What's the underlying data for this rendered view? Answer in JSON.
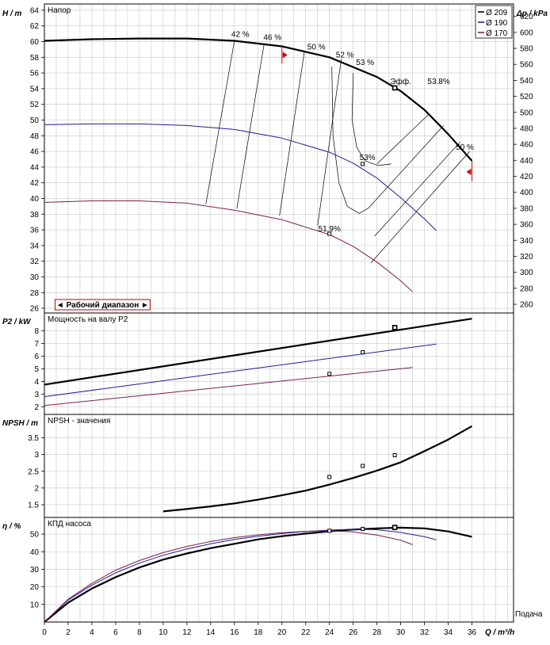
{
  "chart_data": {
    "type": "line",
    "x_axis": {
      "label": "Q / m³/h",
      "label_note": "Подача",
      "ticks": [
        0,
        2,
        4,
        6,
        8,
        10,
        12,
        14,
        16,
        18,
        20,
        22,
        24,
        26,
        28,
        30,
        32,
        34,
        36
      ],
      "range": [
        0,
        39.5
      ]
    },
    "legend": {
      "placement": "top-right",
      "items": [
        {
          "name": "Ø 209",
          "color": "#000000"
        },
        {
          "name": "Ø 190",
          "color": "#1f1f8f"
        },
        {
          "name": "Ø 170",
          "color": "#7a1f4f"
        }
      ]
    },
    "operating_range_label": "◄ Рабочий диапазон ►",
    "panels": [
      {
        "id": "head",
        "title": "Напор",
        "ylabel": "H / m",
        "ylim": [
          25.4,
          64.8
        ],
        "yticks": [
          26,
          28,
          30,
          32,
          34,
          36,
          38,
          40,
          42,
          44,
          46,
          48,
          50,
          52,
          54,
          56,
          58,
          60,
          62,
          64
        ],
        "y2label": "Δp / kPa",
        "y2lim": [
          249.1,
          635.5
        ],
        "y2ticks": [
          260,
          280,
          300,
          320,
          340,
          360,
          380,
          400,
          420,
          440,
          460,
          480,
          500,
          520,
          540,
          560,
          580,
          600,
          620
        ],
        "series": [
          {
            "name": "Ø 209",
            "width": 2.2,
            "x": [
              0,
              4,
              8,
              12,
              16,
              20,
              24,
              28,
              30,
              32,
              34,
              36
            ],
            "y": [
              60.1,
              60.3,
              60.4,
              60.4,
              60.1,
              59.4,
              58.0,
              55.5,
              53.7,
              51.3,
              48.2,
              44.8
            ]
          },
          {
            "name": "Ø 190",
            "width": 1,
            "x": [
              0,
              4,
              8,
              12,
              16,
              20,
              24,
              26,
              28,
              30,
              32,
              33
            ],
            "y": [
              49.4,
              49.5,
              49.5,
              49.3,
              48.8,
              47.7,
              45.9,
              44.5,
              42.6,
              40.1,
              37.4,
              35.9
            ]
          },
          {
            "name": "Ø 170",
            "width": 1,
            "x": [
              0,
              4,
              8,
              12,
              16,
              20,
              24,
              26,
              28,
              30,
              31
            ],
            "y": [
              39.5,
              39.7,
              39.7,
              39.4,
              38.5,
              37.3,
              35.4,
              33.9,
              31.9,
              29.5,
              28.1
            ]
          }
        ],
        "efficiency_lines": [
          {
            "x": [
              13.6,
              16.0
            ],
            "y": [
              39.3,
              60.1
            ]
          },
          {
            "x": [
              16.2,
              18.5
            ],
            "y": [
              38.7,
              59.7
            ]
          },
          {
            "x": [
              19.8,
              21.9
            ],
            "y": [
              37.8,
              58.8
            ]
          },
          {
            "x": [
              23.0,
              25.0
            ],
            "y": [
              36.5,
              57.8
            ]
          }
        ],
        "efficiency_curves": [
          {
            "x": [
              24.2,
              24.3,
              24.8,
              25.5,
              26.5,
              27.3
            ],
            "y": [
              56.8,
              48,
              42,
              39,
              38.1,
              38.8
            ]
          },
          {
            "x": [
              26.0,
              25.9,
              26.3,
              27.0,
              28.1,
              29.2
            ],
            "y": [
              56.0,
              50,
              46.5,
              44.8,
              44.2,
              44.4
            ]
          }
        ],
        "iso_lines": [
          {
            "x": [
              28.0,
              32.4
            ],
            "y": [
              44.4,
              50.8
            ]
          },
          {
            "x": [
              27.3,
              33.6
            ],
            "y": [
              38.8,
              49.3
            ]
          },
          {
            "x": [
              27.8,
              35.0
            ],
            "y": [
              35.2,
              47.2
            ]
          },
          {
            "x": [
              27.5,
              35.8
            ],
            "y": [
              31.8,
              46.0
            ]
          }
        ],
        "markers": [
          {
            "x": 29.5,
            "y": 54.1,
            "series": "Ø 209"
          },
          {
            "x": 26.8,
            "y": 44.4,
            "series": "Ø 190"
          },
          {
            "x": 24.0,
            "y": 35.5,
            "series": "Ø 170"
          }
        ],
        "annotations": [
          {
            "text": "42 %",
            "x": 16.5,
            "y": 60.6
          },
          {
            "text": "46 %",
            "x": 19.2,
            "y": 60.2
          },
          {
            "text": "50 %",
            "x": 22.9,
            "y": 59.0
          },
          {
            "text": "52 %",
            "x": 25.3,
            "y": 58.0
          },
          {
            "text": "53 %",
            "x": 27.0,
            "y": 57.0
          },
          {
            "text": "Эфф.",
            "x": 30.0,
            "y": 54.6
          },
          {
            "text": "53.8%",
            "x": 33.2,
            "y": 54.6
          },
          {
            "text": "53%",
            "x": 27.2,
            "y": 44.9
          },
          {
            "text": "50 %",
            "x": 35.4,
            "y": 46.2
          },
          {
            "text": "51.9%",
            "x": 24.0,
            "y": 35.8
          }
        ]
      },
      {
        "id": "power",
        "title": "Мощность на валу P2",
        "ylabel": "P2 / kW",
        "ylim": [
          1.4,
          9.4
        ],
        "yticks": [
          2,
          3,
          4,
          5,
          6,
          7,
          8
        ],
        "series": [
          {
            "name": "Ø 209",
            "width": 2.2,
            "x": [
              0,
              36
            ],
            "y": [
              3.75,
              8.95
            ]
          },
          {
            "name": "Ø 190",
            "width": 1,
            "x": [
              0,
              33
            ],
            "y": [
              2.8,
              6.95
            ]
          },
          {
            "name": "Ø 170",
            "width": 1,
            "x": [
              0,
              31
            ],
            "y": [
              2.1,
              5.1
            ]
          }
        ],
        "markers": [
          {
            "x": 29.5,
            "y": 8.25,
            "series": "Ø 209"
          },
          {
            "x": 26.8,
            "y": 6.3,
            "series": "Ø 190"
          },
          {
            "x": 24.0,
            "y": 4.6,
            "series": "Ø 170"
          }
        ]
      },
      {
        "id": "npsh",
        "title": "NPSH - значения",
        "ylabel": "NPSH / m",
        "ylim": [
          1.12,
          4.2
        ],
        "yticks": [
          1.5,
          2,
          2.5,
          3,
          3.5
        ],
        "series": [
          {
            "name": "Ø 209",
            "width": 2.2,
            "x": [
              10,
              12,
              14,
              16,
              18,
              20,
              22,
              24,
              26,
              28,
              30,
              32,
              34,
              36
            ],
            "y": [
              1.3,
              1.37,
              1.45,
              1.54,
              1.65,
              1.78,
              1.92,
              2.1,
              2.3,
              2.52,
              2.77,
              3.1,
              3.45,
              3.85
            ]
          }
        ],
        "markers": [
          {
            "x": 24.0,
            "y": 2.33
          },
          {
            "x": 26.8,
            "y": 2.66
          },
          {
            "x": 29.5,
            "y": 2.98
          }
        ]
      },
      {
        "id": "efficiency",
        "title": "КПД насоса",
        "ylabel": "η / %",
        "ylim": [
          0,
          59.5
        ],
        "yticks": [
          10,
          20,
          30,
          40,
          50
        ],
        "series": [
          {
            "name": "Ø 209",
            "width": 2.2,
            "x": [
              0,
              2,
              4,
              6,
              8,
              10,
              12,
              14,
              16,
              18,
              20,
              22,
              24,
              26,
              28,
              30,
              32,
              34,
              36
            ],
            "y": [
              0,
              11,
              19,
              25.5,
              31,
              35.5,
              39,
              42,
              44.5,
              47,
              48.8,
              50.3,
              51.6,
              52.6,
              53.3,
              53.7,
              53.3,
              51.5,
              48.5
            ]
          },
          {
            "name": "Ø 190",
            "width": 1,
            "x": [
              0,
              2,
              4,
              6,
              8,
              10,
              12,
              14,
              16,
              18,
              20,
              22,
              24,
              26,
              28,
              30,
              32,
              33
            ],
            "y": [
              0,
              12.5,
              21,
              28,
              33.5,
              38,
              41.5,
              44.5,
              47,
              48.8,
              50.3,
              51.5,
              52.3,
              52.8,
              52.5,
              51,
              48.5,
              46.8
            ]
          },
          {
            "name": "Ø 170",
            "width": 1,
            "x": [
              0,
              2,
              4,
              6,
              8,
              10,
              12,
              14,
              16,
              18,
              20,
              22,
              24,
              26,
              28,
              30,
              31
            ],
            "y": [
              0,
              13,
              22,
              29.5,
              35,
              39.5,
              43,
              45.8,
              48,
              49.6,
              50.8,
              51.6,
              51.9,
              51.3,
              49.5,
              46.5,
              44
            ]
          }
        ],
        "markers": [
          {
            "x": 24.0,
            "y": 51.9,
            "series": "Ø 170"
          },
          {
            "x": 26.8,
            "y": 53.0,
            "series": "Ø 190"
          },
          {
            "x": 29.5,
            "y": 53.8,
            "series": "Ø 209"
          }
        ]
      }
    ]
  }
}
